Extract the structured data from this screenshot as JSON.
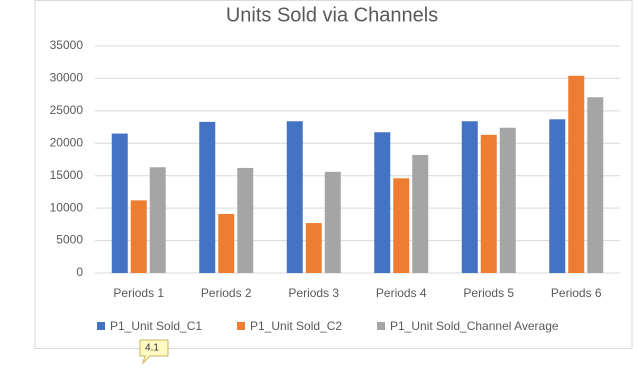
{
  "chart_data": {
    "type": "bar",
    "title": "Units Sold via Channels",
    "categories": [
      "Periods 1",
      "Periods 2",
      "Periods 3",
      "Periods 4",
      "Periods 5",
      "Periods 6"
    ],
    "series": [
      {
        "name": "P1_Unit Sold_C1",
        "color": "#4472c4",
        "values": [
          21500,
          23300,
          23400,
          21700,
          23400,
          23700
        ]
      },
      {
        "name": "P1_Unit Sold_C2",
        "color": "#ed7d31",
        "values": [
          11200,
          9100,
          7700,
          14600,
          21300,
          30400
        ]
      },
      {
        "name": "P1_Unit Sold_Channel Average",
        "color": "#a5a5a5",
        "values": [
          16300,
          16200,
          15600,
          18200,
          22400,
          27100
        ]
      }
    ],
    "ylim": [
      0,
      35000
    ],
    "yticks": [
      0,
      5000,
      10000,
      15000,
      20000,
      25000,
      30000,
      35000
    ],
    "grid": true,
    "legend": "bottom",
    "annotation": "4.1"
  }
}
